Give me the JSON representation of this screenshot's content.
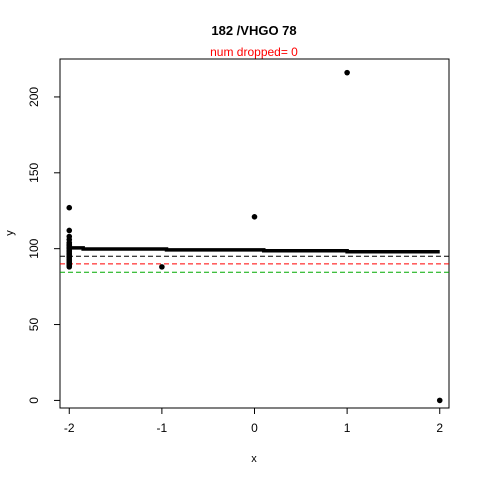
{
  "chart_data": {
    "type": "scatter",
    "title": "182 /VHGO 78",
    "subtitle": "num dropped= 0",
    "xlabel": "x",
    "ylabel": "y",
    "xlim": [
      -2.1,
      2.1
    ],
    "ylim": [
      -5,
      225
    ],
    "x_ticks": [
      -2,
      -1,
      0,
      1,
      2
    ],
    "x_tick_labels": [
      "-2",
      "-1",
      "0",
      "1",
      "2"
    ],
    "y_ticks": [
      0,
      50,
      100,
      150,
      200
    ],
    "y_tick_labels": [
      "0",
      "50",
      "100",
      "150",
      "200"
    ],
    "grid": false,
    "points": [
      {
        "x": -2,
        "y": 127
      },
      {
        "x": -2,
        "y": 112
      },
      {
        "x": -2,
        "y": 108
      },
      {
        "x": -2,
        "y": 106
      },
      {
        "x": -2,
        "y": 104
      },
      {
        "x": -2,
        "y": 103
      },
      {
        "x": -2,
        "y": 102
      },
      {
        "x": -2,
        "y": 101
      },
      {
        "x": -2,
        "y": 100
      },
      {
        "x": -2,
        "y": 99
      },
      {
        "x": -2,
        "y": 98
      },
      {
        "x": -2,
        "y": 97
      },
      {
        "x": -2,
        "y": 96
      },
      {
        "x": -2,
        "y": 95
      },
      {
        "x": -2,
        "y": 94
      },
      {
        "x": -2,
        "y": 93
      },
      {
        "x": -2,
        "y": 92
      },
      {
        "x": -2,
        "y": 91
      },
      {
        "x": -2,
        "y": 90
      },
      {
        "x": -2,
        "y": 89
      },
      {
        "x": -2,
        "y": 88
      },
      {
        "x": -1,
        "y": 88
      },
      {
        "x": 0,
        "y": 121
      },
      {
        "x": 1,
        "y": 216
      },
      {
        "x": 2,
        "y": 0
      }
    ],
    "fit_line": {
      "x": [
        -2,
        -1.85,
        -1.85,
        -0.95,
        -0.95,
        0.1,
        0.1,
        1.0,
        1.0,
        2.0
      ],
      "y": [
        100.5,
        100.5,
        99.8,
        99.8,
        99.2,
        99.2,
        98.6,
        98.6,
        98.0,
        98.0
      ]
    },
    "reference_lines": [
      {
        "y": 95,
        "color": "#000000",
        "style": "dashed"
      },
      {
        "y": 90,
        "color": "#ff0000",
        "style": "dashed"
      },
      {
        "y": 84.5,
        "color": "#00aa00",
        "style": "dashed"
      }
    ]
  }
}
